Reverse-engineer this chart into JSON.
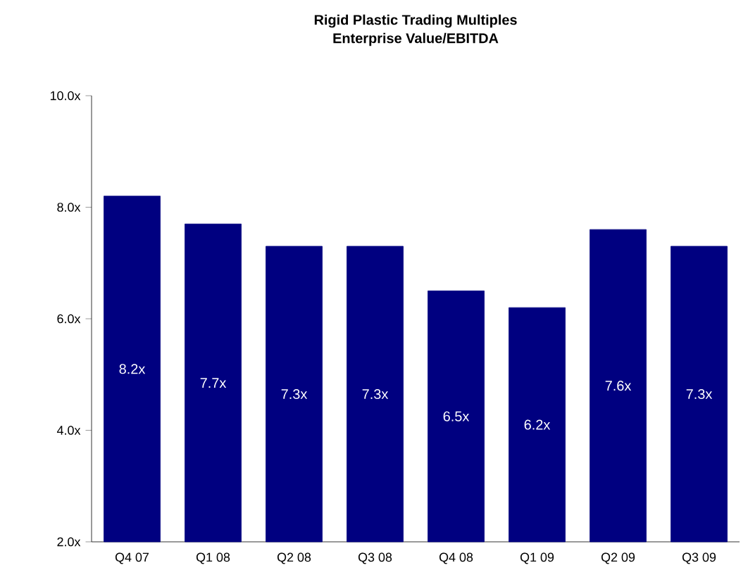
{
  "chart_data": {
    "type": "bar",
    "title": "Rigid Plastic Trading Multiples",
    "subtitle": "Enterprise Value/EBITDA",
    "categories": [
      "Q4 07",
      "Q1 08",
      "Q2 08",
      "Q3 08",
      "Q4 08",
      "Q1 09",
      "Q2 09",
      "Q3 09"
    ],
    "values": [
      8.2,
      7.7,
      7.3,
      7.3,
      6.5,
      6.2,
      7.6,
      7.3
    ],
    "value_labels": [
      "8.2x",
      "7.7x",
      "7.3x",
      "7.3x",
      "6.5x",
      "6.2x",
      "7.6x",
      "7.3x"
    ],
    "color": "#000080",
    "ylim": [
      2,
      10
    ],
    "yticks": [
      {
        "value": 2,
        "label": "2.0x"
      },
      {
        "value": 4,
        "label": "4.0x"
      },
      {
        "value": 6,
        "label": "6.0x"
      },
      {
        "value": 8,
        "label": "8.0x"
      },
      {
        "value": 10,
        "label": "10.0x"
      }
    ],
    "grid": false
  }
}
